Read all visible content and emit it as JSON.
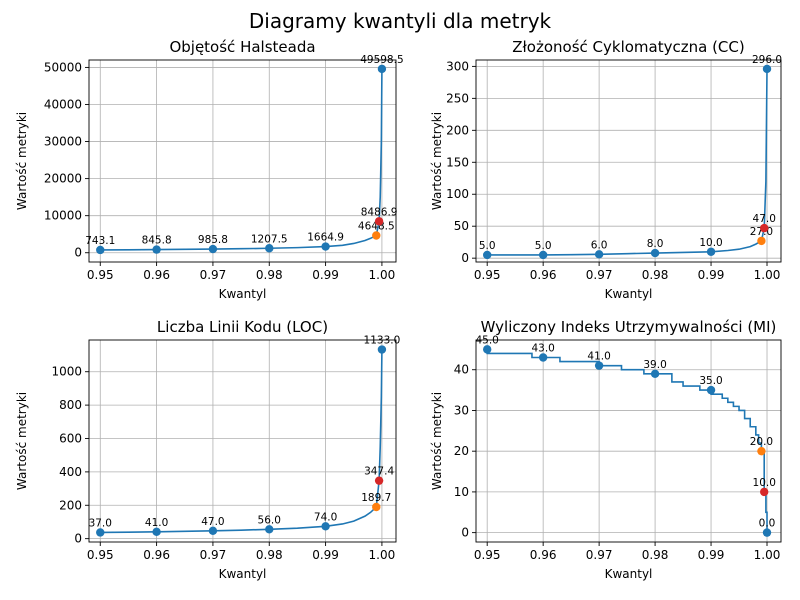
{
  "suptitle": "Diagramy kwantyli dla metryk",
  "colors": {
    "line": "#1f77b4",
    "marker_main": "#1f77b4",
    "marker_orange": "#ff7f0e",
    "marker_red": "#d62728",
    "grid": "#b0b0b0"
  },
  "chart_data": [
    {
      "type": "line",
      "title": "Objętość Halsteada",
      "xlabel": "Kwantyl",
      "ylabel": "Wartość metryki",
      "xlim": [
        0.948,
        1.0025
      ],
      "ylim": [
        -2500,
        52000
      ],
      "xticks": [
        0.95,
        0.96,
        0.97,
        0.98,
        0.99,
        1.0
      ],
      "xtick_labels": [
        "0.95",
        "0.96",
        "0.97",
        "0.98",
        "0.99",
        "1.00"
      ],
      "yticks": [
        0,
        10000,
        20000,
        30000,
        40000,
        50000
      ],
      "ytick_labels": [
        "0",
        "10000",
        "20000",
        "30000",
        "40000",
        "50000"
      ],
      "grid": true,
      "curve": {
        "x": [
          0.95,
          0.955,
          0.96,
          0.965,
          0.97,
          0.975,
          0.98,
          0.985,
          0.99,
          0.993,
          0.995,
          0.997,
          0.998,
          0.999,
          0.9995,
          0.9997,
          0.9999,
          1.0
        ],
        "y": [
          743.1,
          790,
          845.8,
          910,
          985.8,
          1080,
          1207.5,
          1380,
          1664.9,
          2000,
          2500,
          3300,
          3900,
          4648.5,
          8486.9,
          15000,
          30000,
          49598.5
        ]
      },
      "points": [
        {
          "x": 0.95,
          "y": 743.1,
          "label": "743.1",
          "color": "marker_main"
        },
        {
          "x": 0.96,
          "y": 845.8,
          "label": "845.8",
          "color": "marker_main"
        },
        {
          "x": 0.97,
          "y": 985.8,
          "label": "985.8",
          "color": "marker_main"
        },
        {
          "x": 0.98,
          "y": 1207.5,
          "label": "1207.5",
          "color": "marker_main"
        },
        {
          "x": 0.99,
          "y": 1664.9,
          "label": "1664.9",
          "color": "marker_main"
        },
        {
          "x": 0.999,
          "y": 4648.5,
          "label": "4648.5",
          "color": "marker_orange"
        },
        {
          "x": 0.9995,
          "y": 8486.9,
          "label": "8486.9",
          "color": "marker_red"
        },
        {
          "x": 1.0,
          "y": 49598.5,
          "label": "49598.5",
          "color": "marker_main"
        }
      ]
    },
    {
      "type": "line",
      "title": "Złożoność Cyklomatyczna (CC)",
      "xlabel": "Kwantyl",
      "ylabel": "Wartość metryki",
      "xlim": [
        0.948,
        1.0025
      ],
      "ylim": [
        -6,
        310
      ],
      "xticks": [
        0.95,
        0.96,
        0.97,
        0.98,
        0.99,
        1.0
      ],
      "xtick_labels": [
        "0.95",
        "0.96",
        "0.97",
        "0.98",
        "0.99",
        "1.00"
      ],
      "yticks": [
        0,
        50,
        100,
        150,
        200,
        250,
        300
      ],
      "ytick_labels": [
        "0",
        "50",
        "100",
        "150",
        "200",
        "250",
        "300"
      ],
      "grid": true,
      "curve": {
        "x": [
          0.95,
          0.96,
          0.965,
          0.97,
          0.975,
          0.98,
          0.985,
          0.99,
          0.993,
          0.995,
          0.997,
          0.998,
          0.999,
          0.9995,
          0.9998,
          1.0
        ],
        "y": [
          5,
          5,
          5.5,
          6,
          7,
          8,
          9,
          10,
          12,
          14,
          18,
          22,
          27,
          47,
          120,
          296
        ]
      },
      "points": [
        {
          "x": 0.95,
          "y": 5.0,
          "label": "5.0",
          "color": "marker_main"
        },
        {
          "x": 0.96,
          "y": 5.0,
          "label": "5.0",
          "color": "marker_main"
        },
        {
          "x": 0.97,
          "y": 6.0,
          "label": "6.0",
          "color": "marker_main"
        },
        {
          "x": 0.98,
          "y": 8.0,
          "label": "8.0",
          "color": "marker_main"
        },
        {
          "x": 0.99,
          "y": 10.0,
          "label": "10.0",
          "color": "marker_main"
        },
        {
          "x": 0.999,
          "y": 27.0,
          "label": "27.0",
          "color": "marker_orange"
        },
        {
          "x": 0.9995,
          "y": 47.0,
          "label": "47.0",
          "color": "marker_red"
        },
        {
          "x": 1.0,
          "y": 296.0,
          "label": "296.0",
          "color": "marker_main"
        }
      ]
    },
    {
      "type": "line",
      "title": "Liczba Linii Kodu (LOC)",
      "xlabel": "Kwantyl",
      "ylabel": "Wartość metryki",
      "xlim": [
        0.948,
        1.0025
      ],
      "ylim": [
        -20,
        1190
      ],
      "xticks": [
        0.95,
        0.96,
        0.97,
        0.98,
        0.99,
        1.0
      ],
      "xtick_labels": [
        "0.95",
        "0.96",
        "0.97",
        "0.98",
        "0.99",
        "1.00"
      ],
      "yticks": [
        0,
        200,
        400,
        600,
        800,
        1000
      ],
      "ytick_labels": [
        "0",
        "200",
        "400",
        "600",
        "800",
        "1000"
      ],
      "grid": true,
      "curve": {
        "x": [
          0.95,
          0.955,
          0.96,
          0.965,
          0.97,
          0.975,
          0.98,
          0.985,
          0.99,
          0.993,
          0.995,
          0.997,
          0.998,
          0.999,
          0.9995,
          0.9997,
          0.9999,
          1.0
        ],
        "y": [
          37,
          39,
          41,
          44,
          47,
          51,
          56,
          63,
          74,
          88,
          105,
          135,
          158,
          189.7,
          347.4,
          550,
          850,
          1133
        ]
      },
      "points": [
        {
          "x": 0.95,
          "y": 37.0,
          "label": "37.0",
          "color": "marker_main"
        },
        {
          "x": 0.96,
          "y": 41.0,
          "label": "41.0",
          "color": "marker_main"
        },
        {
          "x": 0.97,
          "y": 47.0,
          "label": "47.0",
          "color": "marker_main"
        },
        {
          "x": 0.98,
          "y": 56.0,
          "label": "56.0",
          "color": "marker_main"
        },
        {
          "x": 0.99,
          "y": 74.0,
          "label": "74.0",
          "color": "marker_main"
        },
        {
          "x": 0.999,
          "y": 189.7,
          "label": "189.7",
          "color": "marker_orange"
        },
        {
          "x": 0.9995,
          "y": 347.4,
          "label": "347.4",
          "color": "marker_red"
        },
        {
          "x": 1.0,
          "y": 1133.0,
          "label": "1133.0",
          "color": "marker_main"
        }
      ]
    },
    {
      "type": "line",
      "title": "Wyliczony Indeks Utrzymywalności (MI)",
      "xlabel": "Kwantyl",
      "ylabel": "Wartość metryki",
      "xlim": [
        0.948,
        1.0025
      ],
      "ylim": [
        -2.3,
        47.3
      ],
      "xticks": [
        0.95,
        0.96,
        0.97,
        0.98,
        0.99,
        1.0
      ],
      "xtick_labels": [
        "0.95",
        "0.96",
        "0.97",
        "0.98",
        "0.99",
        "1.00"
      ],
      "yticks": [
        0,
        10,
        20,
        30,
        40
      ],
      "ytick_labels": [
        "0",
        "10",
        "20",
        "30",
        "40"
      ],
      "grid": true,
      "curve": {
        "x": [
          0.95,
          0.95,
          0.958,
          0.958,
          0.963,
          0.963,
          0.97,
          0.97,
          0.974,
          0.974,
          0.978,
          0.978,
          0.983,
          0.983,
          0.985,
          0.985,
          0.988,
          0.988,
          0.99,
          0.99,
          0.992,
          0.992,
          0.993,
          0.993,
          0.994,
          0.994,
          0.995,
          0.995,
          0.996,
          0.996,
          0.997,
          0.997,
          0.998,
          0.998,
          0.9985,
          0.9985,
          0.999,
          0.999,
          0.9995,
          0.9995,
          0.9998,
          0.9998,
          1.0,
          1.0
        ],
        "y": [
          45,
          44,
          44,
          43,
          43,
          42,
          42,
          41,
          41,
          40,
          40,
          39,
          39,
          37,
          37,
          36,
          36,
          35,
          35,
          34,
          34,
          33,
          33,
          32,
          32,
          31,
          31,
          30,
          30,
          28,
          28,
          26,
          26,
          24,
          24,
          22,
          22,
          20,
          20,
          10,
          10,
          5,
          5,
          0
        ]
      },
      "points": [
        {
          "x": 0.95,
          "y": 45.0,
          "label": "45.0",
          "color": "marker_main"
        },
        {
          "x": 0.96,
          "y": 43.0,
          "label": "43.0",
          "color": "marker_main"
        },
        {
          "x": 0.97,
          "y": 41.0,
          "label": "41.0",
          "color": "marker_main"
        },
        {
          "x": 0.98,
          "y": 39.0,
          "label": "39.0",
          "color": "marker_main"
        },
        {
          "x": 0.99,
          "y": 35.0,
          "label": "35.0",
          "color": "marker_main"
        },
        {
          "x": 0.999,
          "y": 20.0,
          "label": "20.0",
          "color": "marker_orange"
        },
        {
          "x": 0.9995,
          "y": 10.0,
          "label": "10.0",
          "color": "marker_red"
        },
        {
          "x": 1.0,
          "y": 0.0,
          "label": "0.0",
          "color": "marker_main"
        }
      ]
    }
  ]
}
